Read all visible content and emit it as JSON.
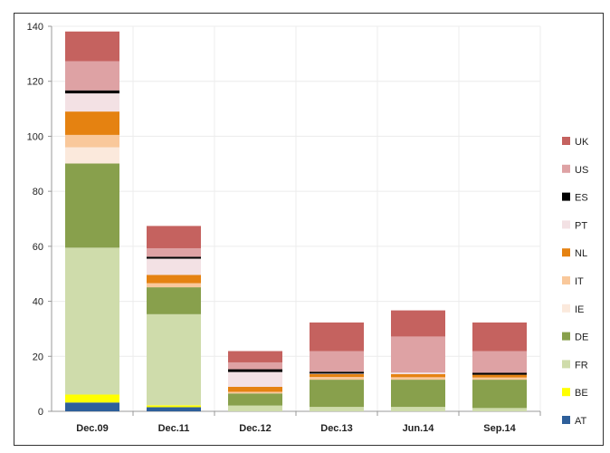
{
  "chart_data": {
    "type": "bar",
    "stacked": true,
    "title": "",
    "xlabel": "",
    "ylabel": "",
    "ylim": [
      0,
      140
    ],
    "yticks": [
      0,
      20,
      40,
      60,
      80,
      100,
      120,
      140
    ],
    "grid": true,
    "legend_position": "right",
    "categories": [
      "Dec.09",
      "Dec.11",
      "Dec.12",
      "Dec.13",
      "Jun.14",
      "Sep.14"
    ],
    "series": [
      {
        "name": "AT",
        "color": "#2e5f9a",
        "values": [
          3.2,
          1.5,
          0,
          0,
          0,
          0
        ]
      },
      {
        "name": "BE",
        "color": "#ffff00",
        "values": [
          2.9,
          0.7,
          0,
          0,
          0,
          0
        ]
      },
      {
        "name": "FR",
        "color": "#cfdcab",
        "values": [
          53.4,
          33.1,
          2.1,
          1.6,
          1.6,
          1.2
        ]
      },
      {
        "name": "DE",
        "color": "#88a04c",
        "values": [
          30.6,
          9.8,
          4.4,
          9.9,
          9.9,
          10.3
        ]
      },
      {
        "name": "IE",
        "color": "#fbe9dc",
        "values": [
          5.9,
          0,
          0,
          0,
          0,
          0
        ]
      },
      {
        "name": "IT",
        "color": "#f9c89b",
        "values": [
          4.5,
          1.5,
          0.6,
          1.0,
          0.9,
          0.8
        ]
      },
      {
        "name": "NL",
        "color": "#e58211",
        "values": [
          8.5,
          3.0,
          1.8,
          1.0,
          1.1,
          1.0
        ]
      },
      {
        "name": "PT",
        "color": "#f3e1e4",
        "values": [
          6.6,
          5.9,
          5.4,
          0.2,
          0.6,
          0
        ]
      },
      {
        "name": "ES",
        "color": "#000000",
        "values": [
          1.1,
          0.7,
          1.0,
          0.7,
          0,
          0.7
        ]
      },
      {
        "name": "US",
        "color": "#dea2a4",
        "values": [
          10.6,
          3.1,
          2.5,
          7.5,
          13.1,
          7.9
        ]
      },
      {
        "name": "UK",
        "color": "#c5625f",
        "values": [
          10.8,
          8.1,
          4.1,
          10.4,
          9.5,
          10.4
        ]
      }
    ]
  }
}
